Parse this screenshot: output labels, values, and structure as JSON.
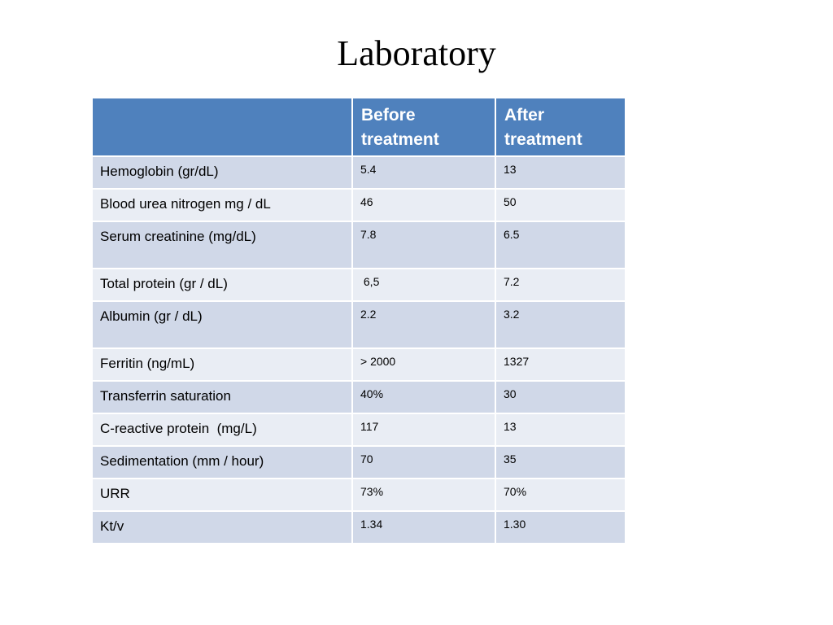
{
  "title": "Laboratory",
  "table": {
    "headers": [
      "",
      "Before treatment",
      "After treatment"
    ],
    "rows": [
      {
        "label": "Hemoglobin (gr/dL)",
        "before": "5.4",
        "after": "13"
      },
      {
        "label": "Blood urea nitrogen mg / dL",
        "before": "46",
        "after": "50"
      },
      {
        "label": "Serum creatinine (mg/dL)",
        "before": "7.8",
        "after": "6.5"
      },
      {
        "label": "Total protein (gr / dL)",
        "before": " 6,5",
        "after": "7.2"
      },
      {
        "label": "Albumin (gr / dL)",
        "before": "2.2",
        "after": "3.2"
      },
      {
        "label": "Ferritin (ng/mL)",
        "before": "> 2000",
        "after": "1327"
      },
      {
        "label": "Transferrin saturation",
        "before": "40%",
        "after": "30"
      },
      {
        "label": "C-reactive protein  (mg/L)",
        "before": "117",
        "after": "13"
      },
      {
        "label": "Sedimentation (mm / hour)",
        "before": "70",
        "after": "35"
      },
      {
        "label": "URR",
        "before": "73%",
        "after": "70%"
      },
      {
        "label": "Kt/v",
        "before": "1.34",
        "after": "1.30"
      }
    ]
  },
  "colors": {
    "header_bg": "#4f81bd",
    "row_dark": "#d0d8e8",
    "row_light": "#e9edf4"
  }
}
